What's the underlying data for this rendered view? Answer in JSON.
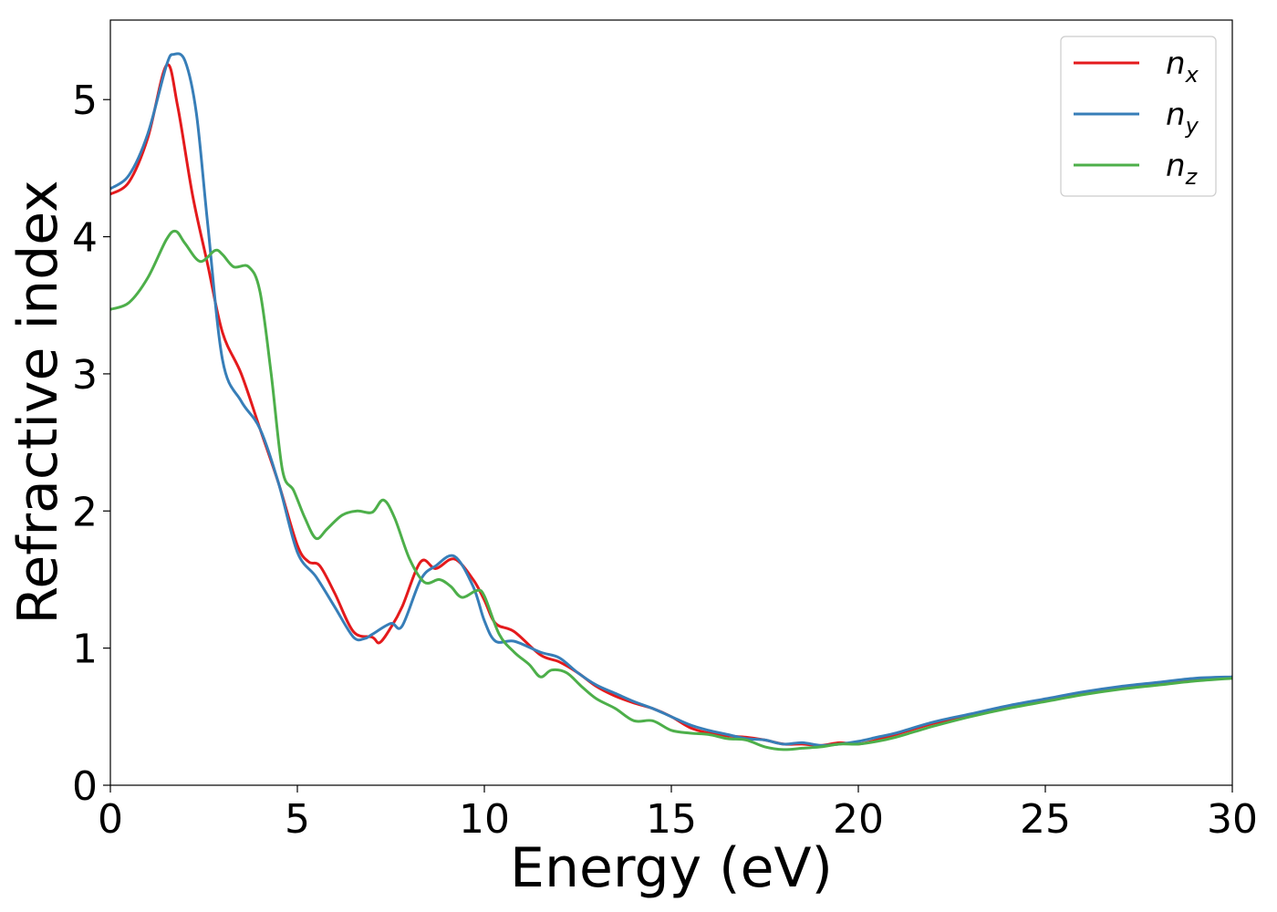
{
  "chart_data": {
    "type": "line",
    "title": "",
    "xlabel": "Energy (eV)",
    "ylabel": "Refractive index",
    "xlim": [
      0,
      30
    ],
    "ylim": [
      0,
      5.58
    ],
    "xticks": [
      0,
      5,
      10,
      15,
      20,
      25,
      30
    ],
    "yticks": [
      0,
      1,
      2,
      3,
      4,
      5
    ],
    "grid": false,
    "legend_position": "top-right",
    "series": [
      {
        "name": "n_x",
        "label_base": "n",
        "label_sub": "x",
        "color": "#e41a1c",
        "x": [
          0,
          0.5,
          1.0,
          1.5,
          1.8,
          2.2,
          2.6,
          3.0,
          3.5,
          4.0,
          4.5,
          5.0,
          5.3,
          5.6,
          6.0,
          6.5,
          7.0,
          7.2,
          7.5,
          7.8,
          8.3,
          8.7,
          9.2,
          9.7,
          10.0,
          10.3,
          10.8,
          11.5,
          12.0,
          12.5,
          13.0,
          13.5,
          14.0,
          14.5,
          15.0,
          15.5,
          16.0,
          16.5,
          17.0,
          17.5,
          18.0,
          18.5,
          19.0,
          19.5,
          20.0,
          20.5,
          21.0,
          22.0,
          23.0,
          24.0,
          25.0,
          26.0,
          27.0,
          28.0,
          29.0,
          30.0
        ],
        "y": [
          4.31,
          4.4,
          4.72,
          5.25,
          4.95,
          4.3,
          3.8,
          3.3,
          3.0,
          2.6,
          2.2,
          1.75,
          1.63,
          1.6,
          1.4,
          1.12,
          1.08,
          1.04,
          1.15,
          1.3,
          1.63,
          1.58,
          1.65,
          1.5,
          1.35,
          1.18,
          1.12,
          0.95,
          0.9,
          0.82,
          0.72,
          0.65,
          0.6,
          0.56,
          0.5,
          0.42,
          0.38,
          0.36,
          0.35,
          0.33,
          0.3,
          0.3,
          0.29,
          0.31,
          0.3,
          0.33,
          0.37,
          0.45,
          0.51,
          0.57,
          0.62,
          0.67,
          0.71,
          0.74,
          0.77,
          0.79
        ]
      },
      {
        "name": "n_y",
        "label_base": "n",
        "label_sub": "y",
        "color": "#377eb8",
        "x": [
          0,
          0.5,
          1.0,
          1.5,
          1.7,
          2.0,
          2.3,
          2.6,
          3.0,
          3.5,
          4.0,
          4.5,
          5.0,
          5.5,
          6.0,
          6.5,
          6.8,
          7.0,
          7.5,
          7.8,
          8.3,
          8.7,
          9.2,
          9.7,
          10.0,
          10.3,
          10.8,
          11.5,
          12.0,
          12.5,
          13.0,
          13.5,
          14.0,
          14.5,
          15.0,
          15.5,
          16.0,
          16.5,
          17.0,
          17.5,
          18.0,
          18.5,
          19.0,
          19.5,
          20.0,
          20.5,
          21.0,
          22.0,
          23.0,
          24.0,
          25.0,
          26.0,
          27.0,
          28.0,
          29.0,
          30.0
        ],
        "y": [
          4.35,
          4.45,
          4.75,
          5.25,
          5.33,
          5.28,
          4.9,
          4.1,
          3.1,
          2.8,
          2.6,
          2.2,
          1.7,
          1.52,
          1.3,
          1.08,
          1.07,
          1.1,
          1.18,
          1.16,
          1.5,
          1.6,
          1.67,
          1.45,
          1.2,
          1.05,
          1.05,
          0.97,
          0.93,
          0.82,
          0.73,
          0.67,
          0.61,
          0.56,
          0.5,
          0.44,
          0.4,
          0.37,
          0.34,
          0.33,
          0.3,
          0.31,
          0.29,
          0.3,
          0.32,
          0.35,
          0.38,
          0.46,
          0.52,
          0.58,
          0.63,
          0.68,
          0.72,
          0.75,
          0.78,
          0.79
        ]
      },
      {
        "name": "n_z",
        "label_base": "n",
        "label_sub": "z",
        "color": "#4daf4a",
        "x": [
          0,
          0.5,
          1.0,
          1.5,
          1.75,
          2.0,
          2.4,
          2.8,
          3.0,
          3.3,
          3.7,
          4.0,
          4.3,
          4.6,
          4.9,
          5.2,
          5.5,
          5.8,
          6.2,
          6.6,
          7.0,
          7.3,
          7.6,
          8.0,
          8.4,
          8.8,
          9.1,
          9.4,
          9.8,
          10.0,
          10.4,
          10.8,
          11.2,
          11.5,
          11.8,
          12.2,
          12.6,
          13.0,
          13.5,
          14.0,
          14.5,
          15.0,
          15.5,
          16.0,
          16.5,
          17.0,
          17.5,
          18.0,
          18.5,
          19.0,
          19.5,
          20.0,
          20.5,
          21.0,
          21.5,
          22.0,
          23.0,
          24.0,
          25.0,
          26.0,
          27.0,
          28.0,
          29.0,
          30.0
        ],
        "y": [
          3.47,
          3.52,
          3.7,
          3.98,
          4.04,
          3.95,
          3.82,
          3.9,
          3.87,
          3.78,
          3.78,
          3.6,
          3.0,
          2.3,
          2.15,
          1.95,
          1.8,
          1.87,
          1.97,
          2.0,
          1.99,
          2.08,
          1.95,
          1.65,
          1.48,
          1.5,
          1.45,
          1.37,
          1.42,
          1.38,
          1.1,
          0.97,
          0.88,
          0.79,
          0.84,
          0.82,
          0.72,
          0.63,
          0.56,
          0.47,
          0.47,
          0.4,
          0.38,
          0.37,
          0.34,
          0.33,
          0.28,
          0.26,
          0.27,
          0.28,
          0.3,
          0.3,
          0.32,
          0.35,
          0.39,
          0.43,
          0.5,
          0.56,
          0.61,
          0.66,
          0.7,
          0.73,
          0.76,
          0.78
        ]
      }
    ]
  }
}
